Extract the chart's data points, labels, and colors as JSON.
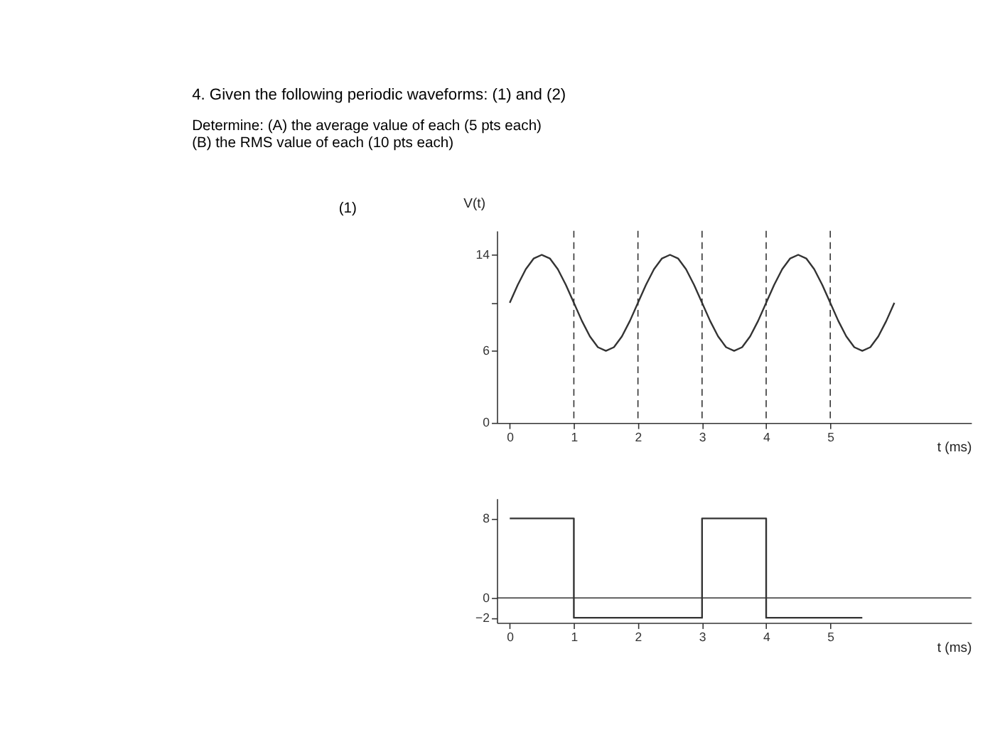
{
  "chart_data": [
    {
      "type": "line",
      "title": "4. Given the following periodic waveforms: (1) and (2)",
      "subtitle": "Determine:   (A) the average value of each   (5 pts each)",
      "annotations": [
        "(B) the RMS value of each   (10 pts each)",
        "(1)"
      ],
      "ylabel": "V(t)",
      "xlabel": "t (ms)",
      "x": [
        0,
        0.125,
        0.25,
        0.375,
        0.5,
        0.625,
        0.75,
        0.875,
        1,
        1.125,
        1.25,
        1.375,
        1.5,
        1.625,
        1.75,
        1.875,
        2,
        2.125,
        2.25,
        2.375,
        2.5,
        2.625,
        2.75,
        2.875,
        3,
        3.125,
        3.25,
        3.375,
        3.5,
        3.625,
        3.75,
        3.875,
        4,
        4.125,
        4.25,
        4.375,
        4.5,
        4.625,
        4.75,
        4.875,
        5,
        5.125,
        5.25,
        5.375,
        5.5,
        5.625,
        5.75,
        5.875,
        6
      ],
      "series": [
        {
          "color": "#333333",
          "values": [
            10,
            11.5,
            12.8,
            13.7,
            14,
            13.7,
            12.8,
            11.5,
            10,
            8.5,
            7.2,
            6.3,
            6,
            6.3,
            7.2,
            8.5,
            10,
            11.5,
            12.8,
            13.7,
            14,
            13.7,
            12.8,
            11.5,
            10,
            8.5,
            7.2,
            6.3,
            6,
            6.3,
            7.2,
            8.5,
            10,
            11.5,
            12.8,
            13.7,
            14,
            13.7,
            12.8,
            11.5,
            10,
            8.5,
            7.2,
            6.3,
            6,
            6.3,
            7.2,
            8.5,
            10
          ]
        }
      ],
      "xlim": [
        -0.2,
        7.2
      ],
      "ylim": [
        0,
        16
      ],
      "xticks": [
        0,
        1,
        2,
        3,
        4,
        5
      ],
      "yticks": [
        0,
        6,
        {
          "value": 10,
          "label": null
        },
        14
      ],
      "ref_lines": [
        {
          "axis": "x",
          "value": 1,
          "line_style": "dashed",
          "color": "#333333"
        },
        {
          "axis": "x",
          "value": 2,
          "line_style": "dashed",
          "color": "#333333"
        },
        {
          "axis": "x",
          "value": 3,
          "line_style": "dashed",
          "color": "#333333"
        },
        {
          "axis": "x",
          "value": 4,
          "line_style": "dashed",
          "color": "#333333"
        },
        {
          "axis": "x",
          "value": 5,
          "line_style": "dashed",
          "color": "#333333"
        }
      ],
      "grid": false,
      "marker": "none",
      "line_style": "solid"
    },
    {
      "type": "step",
      "xlabel": "t (ms)",
      "x": [
        0,
        1,
        3,
        4,
        5.5
      ],
      "series": [
        {
          "color": "#333333",
          "values": [
            8,
            -2,
            8,
            -2,
            -2
          ]
        }
      ],
      "ref_lines": [
        {
          "axis": "y",
          "value": 0,
          "color": "#333333",
          "line_style": "solid"
        }
      ],
      "xlim": [
        -0.2,
        7.2
      ],
      "ylim": [
        -2.5,
        10
      ],
      "xticks": [
        0,
        1,
        2,
        3,
        4,
        5
      ],
      "yticks": [
        -2,
        0,
        8
      ],
      "grid": false,
      "marker": "none",
      "line_style": "solid"
    }
  ]
}
